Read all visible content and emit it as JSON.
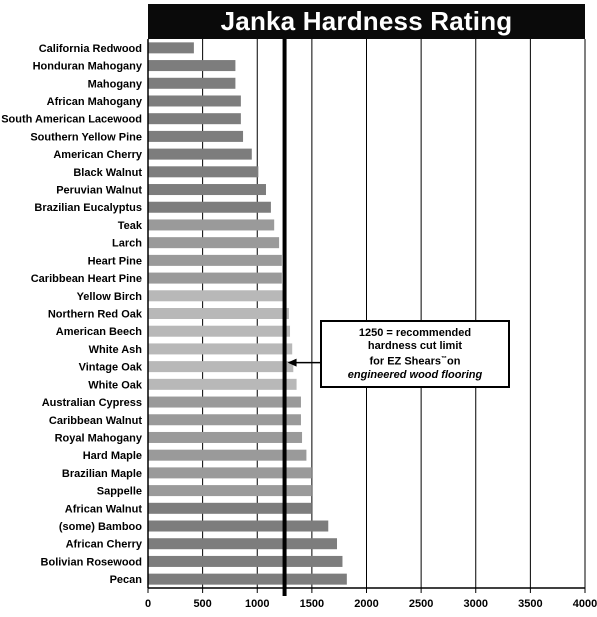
{
  "chart_data": {
    "type": "bar",
    "orientation": "horizontal",
    "title": "Janka Hardness Rating",
    "categories": [
      "California Redwood",
      "Honduran Mahogany",
      "Mahogany",
      "African Mahogany",
      "South American Lacewood",
      "Southern Yellow Pine",
      "American Cherry",
      "Black Walnut",
      "Peruvian Walnut",
      "Brazilian Eucalyptus",
      "Teak",
      "Larch",
      "Heart Pine",
      "Caribbean Heart Pine",
      "Yellow Birch",
      "Northern Red Oak",
      "American Beech",
      "White Ash",
      "Vintage Oak",
      "White Oak",
      "Australian Cypress",
      "Caribbean Walnut",
      "Royal Mahogany",
      "Hard Maple",
      "Brazilian Maple",
      "Sappelle",
      "African Walnut",
      "(some) Bamboo",
      "African Cherry",
      "Bolivian Rosewood",
      "Pecan"
    ],
    "values": [
      420,
      800,
      800,
      850,
      850,
      870,
      950,
      1010,
      1080,
      1125,
      1155,
      1200,
      1225,
      1225,
      1260,
      1290,
      1300,
      1320,
      1330,
      1360,
      1400,
      1400,
      1410,
      1450,
      1500,
      1500,
      1500,
      1650,
      1730,
      1780,
      1820
    ],
    "xlim": [
      0,
      4000
    ],
    "xticks": [
      0,
      500,
      1000,
      1500,
      2000,
      2500,
      3000,
      3500,
      4000
    ],
    "grid": true,
    "reference_line": 1250,
    "colors": {
      "dark": "#7d7d7d",
      "mid": "#9a9a9a",
      "light": "#b8b8b8",
      "title_bg": "#0a0a0a",
      "title_fg": "#ffffff"
    },
    "annotation": {
      "number": "1250",
      "text_1": " = recommended",
      "text_2": "hardness cut limit",
      "text_3": "for EZ Shears",
      "text_3_mark": "™",
      "text_3_end": "on",
      "text_4": "engineered wood flooring"
    }
  }
}
